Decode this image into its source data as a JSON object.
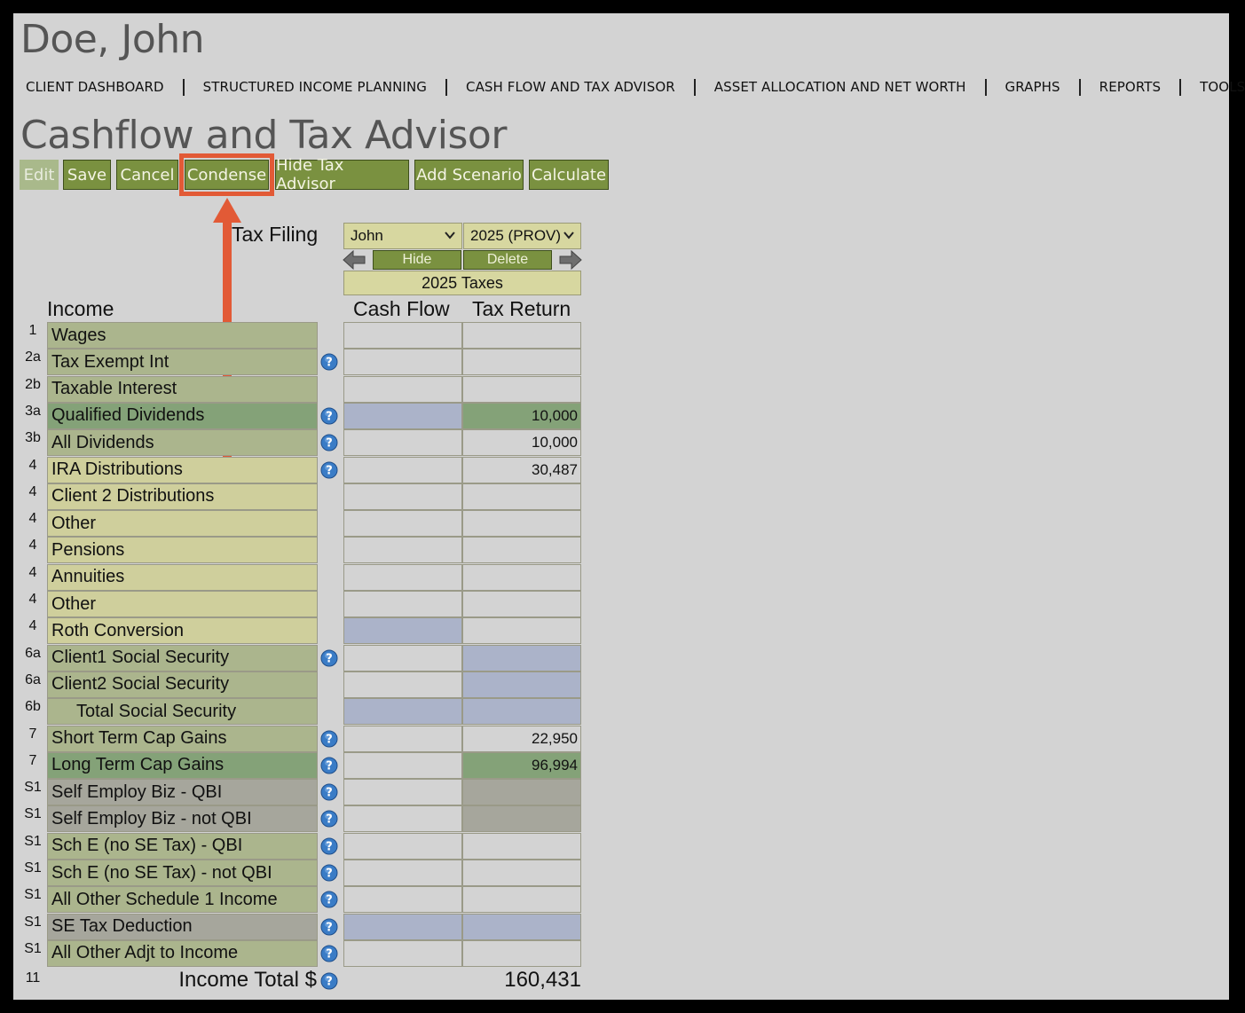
{
  "client_name": "Doe, John",
  "nav": [
    {
      "label": "CLIENT DASHBOARD"
    },
    {
      "label": "STRUCTURED INCOME PLANNING"
    },
    {
      "label": "CASH FLOW AND TAX ADVISOR"
    },
    {
      "label": "ASSET ALLOCATION AND NET WORTH"
    },
    {
      "label": "GRAPHS"
    },
    {
      "label": "REPORTS"
    },
    {
      "label": "TOOLS"
    }
  ],
  "page_title": "Cashflow and Tax Advisor",
  "toolbar": {
    "edit": "Edit",
    "save": "Save",
    "cancel": "Cancel",
    "condense": "Condense",
    "hide_tax_advisor": "Hide Tax Advisor",
    "add_scenario": "Add Scenario",
    "calculate": "Calculate"
  },
  "tax_filing": {
    "label": "Tax Filing",
    "person_select": "John",
    "year_select": "2025 (PROV)",
    "hide": "Hide",
    "delete": "Delete",
    "taxes_header": "2025 Taxes"
  },
  "table": {
    "section_label": "Income",
    "col_cash": "Cash Flow",
    "col_tax": "Tax Return",
    "rows": [
      {
        "line": "1",
        "label": "Wages",
        "help": false,
        "cash": "",
        "tax": "",
        "label_color": "#abb58d",
        "cash_color": "#d3d3d3",
        "tax_color": "#d3d3d3",
        "indent": false
      },
      {
        "line": "2a",
        "label": "Tax Exempt Int",
        "help": true,
        "cash": "",
        "tax": "",
        "label_color": "#abb58d",
        "cash_color": "#d3d3d3",
        "tax_color": "#d3d3d3",
        "indent": false
      },
      {
        "line": "2b",
        "label": "Taxable Interest",
        "help": false,
        "cash": "",
        "tax": "",
        "label_color": "#abb58d",
        "cash_color": "#d3d3d3",
        "tax_color": "#d3d3d3",
        "indent": false
      },
      {
        "line": "3a",
        "label": "Qualified Dividends",
        "help": true,
        "cash": "",
        "tax": "10,000",
        "label_color": "#84a278",
        "cash_color": "#abb3c9",
        "tax_color": "#84a278",
        "indent": false
      },
      {
        "line": "3b",
        "label": "All Dividends",
        "help": true,
        "cash": "",
        "tax": "10,000",
        "label_color": "#abb58d",
        "cash_color": "#d3d3d3",
        "tax_color": "#d3d3d3",
        "indent": false
      },
      {
        "line": "4",
        "label": "IRA Distributions",
        "help": true,
        "cash": "",
        "tax": "30,487",
        "label_color": "#cfcf9c",
        "cash_color": "#d3d3d3",
        "tax_color": "#d3d3d3",
        "indent": false
      },
      {
        "line": "4",
        "label": "Client 2 Distributions",
        "help": false,
        "cash": "",
        "tax": "",
        "label_color": "#cfcf9c",
        "cash_color": "#d3d3d3",
        "tax_color": "#d3d3d3",
        "indent": false
      },
      {
        "line": "4",
        "label": "Other",
        "help": false,
        "cash": "",
        "tax": "",
        "label_color": "#cfcf9c",
        "cash_color": "#d3d3d3",
        "tax_color": "#d3d3d3",
        "indent": false
      },
      {
        "line": "4",
        "label": "Pensions",
        "help": false,
        "cash": "",
        "tax": "",
        "label_color": "#cfcf9c",
        "cash_color": "#d3d3d3",
        "tax_color": "#d3d3d3",
        "indent": false
      },
      {
        "line": "4",
        "label": "Annuities",
        "help": false,
        "cash": "",
        "tax": "",
        "label_color": "#cfcf9c",
        "cash_color": "#d3d3d3",
        "tax_color": "#d3d3d3",
        "indent": false
      },
      {
        "line": "4",
        "label": "Other",
        "help": false,
        "cash": "",
        "tax": "",
        "label_color": "#cfcf9c",
        "cash_color": "#d3d3d3",
        "tax_color": "#d3d3d3",
        "indent": false
      },
      {
        "line": "4",
        "label": "Roth Conversion",
        "help": false,
        "cash": "",
        "tax": "",
        "label_color": "#cfcf9c",
        "cash_color": "#abb3c9",
        "tax_color": "#d3d3d3",
        "indent": false
      },
      {
        "line": "6a",
        "label": "Client1 Social Security",
        "help": true,
        "cash": "",
        "tax": "",
        "label_color": "#abb58d",
        "cash_color": "#d3d3d3",
        "tax_color": "#abb3c9",
        "indent": false
      },
      {
        "line": "6a",
        "label": "Client2 Social Security",
        "help": false,
        "cash": "",
        "tax": "",
        "label_color": "#abb58d",
        "cash_color": "#d3d3d3",
        "tax_color": "#abb3c9",
        "indent": false
      },
      {
        "line": "6b",
        "label": "Total Social Security",
        "help": false,
        "cash": "",
        "tax": "",
        "label_color": "#abb58d",
        "cash_color": "#abb3c9",
        "tax_color": "#abb3c9",
        "indent": true
      },
      {
        "line": "7",
        "label": "Short Term Cap Gains",
        "help": true,
        "cash": "",
        "tax": "22,950",
        "label_color": "#abb58d",
        "cash_color": "#d3d3d3",
        "tax_color": "#d3d3d3",
        "indent": false
      },
      {
        "line": "7",
        "label": "Long Term Cap Gains",
        "help": true,
        "cash": "",
        "tax": "96,994",
        "label_color": "#84a278",
        "cash_color": "#d3d3d3",
        "tax_color": "#84a278",
        "indent": false
      },
      {
        "line": "S1",
        "label": "Self Employ Biz - QBI",
        "help": true,
        "cash": "",
        "tax": "",
        "label_color": "#a6a69c",
        "cash_color": "#d3d3d3",
        "tax_color": "#a6a69c",
        "indent": false
      },
      {
        "line": "S1",
        "label": "Self Employ Biz - not QBI",
        "help": true,
        "cash": "",
        "tax": "",
        "label_color": "#a6a69c",
        "cash_color": "#d3d3d3",
        "tax_color": "#a6a69c",
        "indent": false
      },
      {
        "line": "S1",
        "label": "Sch E (no SE Tax) - QBI",
        "help": true,
        "cash": "",
        "tax": "",
        "label_color": "#abb58d",
        "cash_color": "#d3d3d3",
        "tax_color": "#d3d3d3",
        "indent": false
      },
      {
        "line": "S1",
        "label": "Sch E (no SE Tax) - not QBI",
        "help": true,
        "cash": "",
        "tax": "",
        "label_color": "#abb58d",
        "cash_color": "#d3d3d3",
        "tax_color": "#d3d3d3",
        "indent": false
      },
      {
        "line": "S1",
        "label": "All Other Schedule 1 Income",
        "help": true,
        "cash": "",
        "tax": "",
        "label_color": "#abb58d",
        "cash_color": "#d3d3d3",
        "tax_color": "#d3d3d3",
        "indent": false
      },
      {
        "line": "S1",
        "label": "SE Tax Deduction",
        "help": true,
        "cash": "",
        "tax": "",
        "label_color": "#a6a69c",
        "cash_color": "#abb3c9",
        "tax_color": "#abb3c9",
        "indent": false
      },
      {
        "line": "S1",
        "label": "All Other Adjt to Income",
        "help": true,
        "cash": "",
        "tax": "",
        "label_color": "#abb58d",
        "cash_color": "#d3d3d3",
        "tax_color": "#d3d3d3",
        "indent": false
      }
    ],
    "total": {
      "line": "11",
      "label": "Income Total $",
      "value": "160,431"
    }
  },
  "icons": {
    "help": "question-circle-icon",
    "prev": "left-arrow-icon",
    "next": "right-arrow-icon",
    "dropdown": "chevron-down-icon",
    "annotation": "orange-arrow-annotation"
  },
  "colors": {
    "button_green": "#7a9140",
    "annotation_orange": "#e25a36",
    "help_blue": "#3a7cc6"
  }
}
